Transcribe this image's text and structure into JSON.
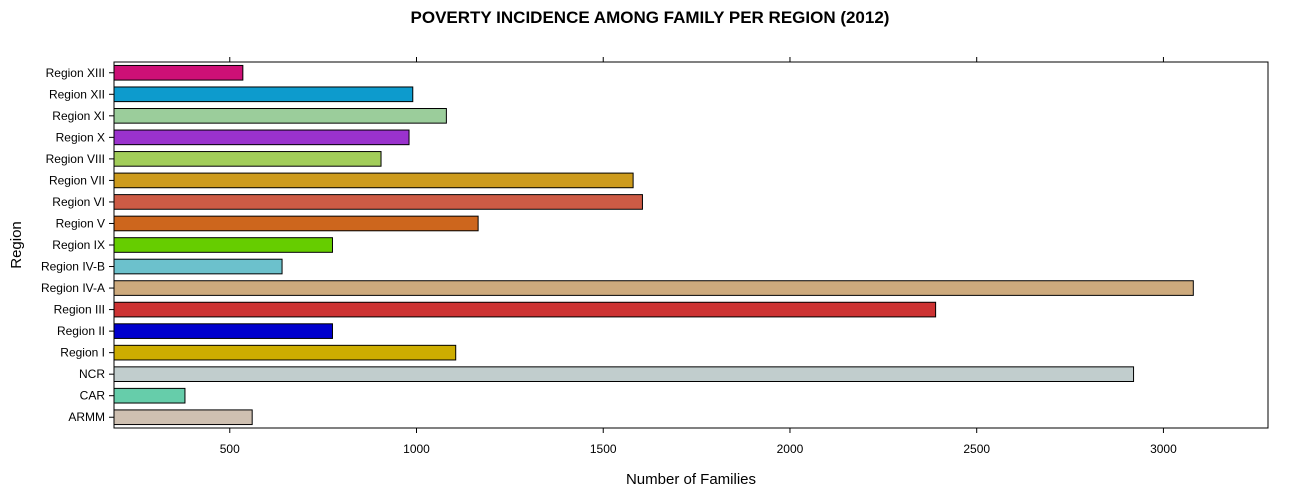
{
  "chart_data": {
    "type": "bar",
    "orientation": "horizontal",
    "title": "POVERTY INCIDENCE AMONG FAMILY PER REGION (2012)",
    "xlabel": "Number of Families",
    "ylabel": "Region",
    "xlim": [
      190,
      3280
    ],
    "xticks": [
      500,
      1000,
      1500,
      2000,
      2500,
      3000
    ],
    "categories": [
      "ARMM",
      "CAR",
      "NCR",
      "Region I",
      "Region II",
      "Region III",
      "Region IV-A",
      "Region IV-B",
      "Region IX",
      "Region V",
      "Region VI",
      "Region VII",
      "Region VIII",
      "Region X",
      "Region XI",
      "Region XII",
      "Region XIII"
    ],
    "values": [
      560,
      380,
      2920,
      1105,
      775,
      2390,
      3080,
      640,
      775,
      1165,
      1605,
      1580,
      905,
      980,
      1080,
      990,
      535
    ],
    "colors": [
      "#cfc0b1",
      "#66cdaa",
      "#c1cdcd",
      "#cdad00",
      "#0000cd",
      "#cd3333",
      "#cdaa7d",
      "#6cc1cc",
      "#66cd00",
      "#cd661d",
      "#cd5b45",
      "#cd9b1d",
      "#a2cd5a",
      "#9a32cd",
      "#9bcd9b",
      "#0d9bcd",
      "#cd1076"
    ],
    "grid": false,
    "legend": "none"
  }
}
